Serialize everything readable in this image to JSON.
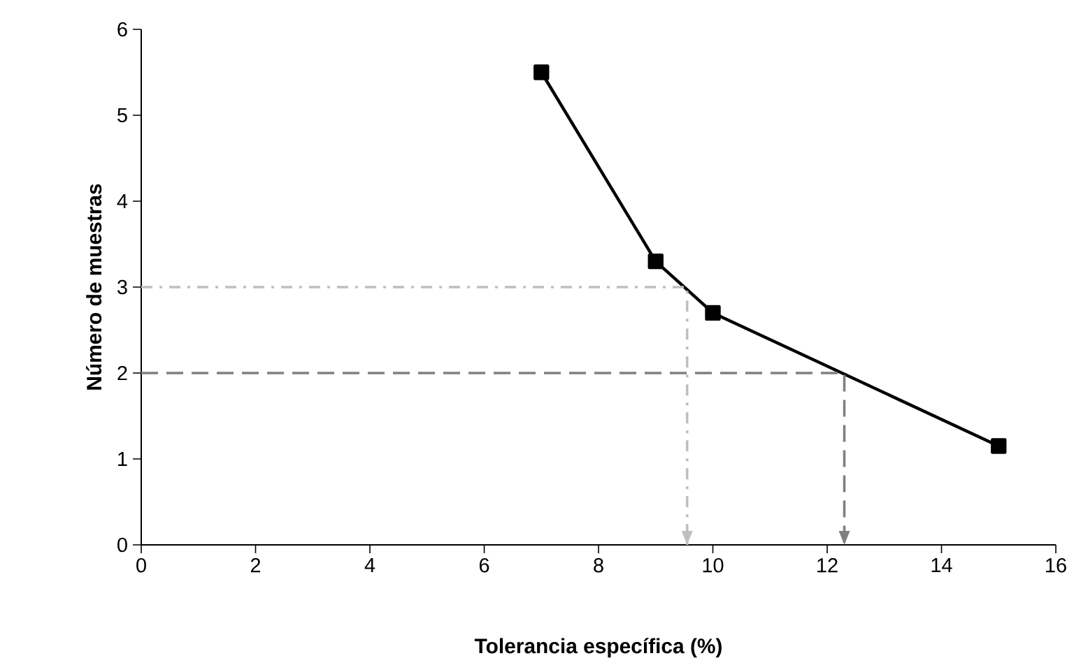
{
  "chart_data": {
    "type": "line",
    "xlabel": "Tolerancia específica (%)",
    "ylabel": "Número de muestras",
    "xlim": [
      0,
      16
    ],
    "ylim": [
      0,
      6
    ],
    "xticks": [
      0,
      2,
      4,
      6,
      8,
      10,
      12,
      14,
      16
    ],
    "yticks": [
      0,
      1,
      2,
      3,
      4,
      5,
      6
    ],
    "series": [
      {
        "color": "#000000",
        "marker": "square",
        "line_style": "solid",
        "x": [
          7,
          9,
          10,
          15
        ],
        "values": [
          5.5,
          3.3,
          2.7,
          1.15
        ]
      },
      {
        "color": "#bfbfbf",
        "marker": "none",
        "line_style": "dashdot",
        "x": [
          0,
          9.55,
          9.55
        ],
        "values": [
          3,
          3,
          0
        ]
      },
      {
        "color": "#808080",
        "marker": "none",
        "line_style": "dashed",
        "x": [
          0,
          12.3,
          12.3
        ],
        "values": [
          2,
          2,
          0
        ]
      }
    ]
  }
}
